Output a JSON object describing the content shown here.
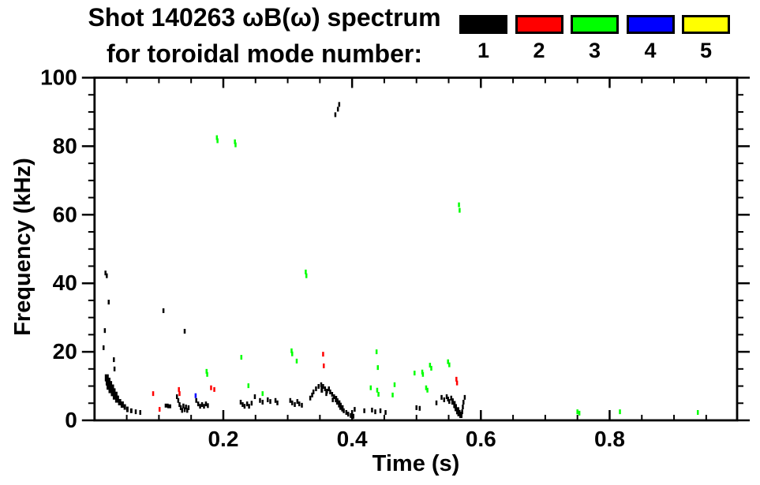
{
  "header": {
    "title_line1": "Shot 140263 ωB(ω) spectrum",
    "title_line2": "for toroidal mode number:"
  },
  "legend": {
    "items": [
      {
        "label": "1",
        "color": "#000000"
      },
      {
        "label": "2",
        "color": "#ff0000"
      },
      {
        "label": "3",
        "color": "#00ff00"
      },
      {
        "label": "4",
        "color": "#0000ff"
      },
      {
        "label": "5",
        "color": "#ffff00"
      }
    ]
  },
  "chart_data": {
    "type": "scatter",
    "title": "Shot 140263 ωB(ω) spectrum for toroidal mode number: 1 2 3 4 5",
    "xlabel": "Time (s)",
    "ylabel": "Frequency (kHz)",
    "xlim": [
      0,
      0.998
    ],
    "ylim": [
      0,
      100
    ],
    "grid": false,
    "legend_position": "top",
    "x_major_ticks": [
      {
        "value": 0.2,
        "label": "0.2"
      },
      {
        "value": 0.4,
        "label": "0.4"
      },
      {
        "value": 0.6,
        "label": "0.6"
      },
      {
        "value": 0.8,
        "label": "0.8"
      }
    ],
    "x_minor_step": 0.05,
    "y_major_ticks": [
      {
        "value": 0,
        "label": "0"
      },
      {
        "value": 20,
        "label": "20"
      },
      {
        "value": 40,
        "label": "40"
      },
      {
        "value": 60,
        "label": "60"
      },
      {
        "value": 80,
        "label": "80"
      },
      {
        "value": 100,
        "label": "100"
      }
    ],
    "y_minor_step": 5,
    "series": [
      {
        "name": "n=1",
        "color": "#000000",
        "points": [
          [
            0.017,
            43
          ],
          [
            0.019,
            42.2
          ],
          [
            0.022,
            34.5
          ],
          [
            0.016,
            26.2
          ],
          [
            0.014,
            21.2
          ],
          [
            0.03,
            17.7
          ],
          [
            0.031,
            15.0
          ],
          [
            0.019,
            12.4,
            5,
            9
          ],
          [
            0.021,
            11.3,
            6,
            10
          ],
          [
            0.023,
            10.2,
            7,
            11
          ],
          [
            0.026,
            9.2,
            7,
            11
          ],
          [
            0.029,
            8.2,
            6,
            10
          ],
          [
            0.032,
            7.2,
            6,
            10
          ],
          [
            0.035,
            6.2,
            5,
            9
          ],
          [
            0.039,
            5.3,
            4,
            8
          ],
          [
            0.043,
            4.6,
            4,
            8
          ],
          [
            0.047,
            3.9,
            3,
            7
          ],
          [
            0.051,
            3.2,
            3,
            7
          ],
          [
            0.057,
            2.8,
            3,
            6
          ],
          [
            0.064,
            2.5
          ],
          [
            0.071,
            2.3
          ],
          [
            0.107,
            32.0
          ],
          [
            0.14,
            26.0
          ],
          [
            0.112,
            4.3,
            5,
            5
          ],
          [
            0.116,
            4.1,
            5,
            5
          ],
          [
            0.128,
            6.9
          ],
          [
            0.13,
            5.8
          ],
          [
            0.132,
            4.6
          ],
          [
            0.134,
            3.7
          ],
          [
            0.136,
            2.9
          ],
          [
            0.138,
            4.2
          ],
          [
            0.14,
            3.1
          ],
          [
            0.142,
            3.9
          ],
          [
            0.144,
            2.9
          ],
          [
            0.146,
            3.7
          ],
          [
            0.158,
            5.8
          ],
          [
            0.161,
            4.8
          ],
          [
            0.164,
            4.1
          ],
          [
            0.167,
            4.6
          ],
          [
            0.17,
            4.1
          ],
          [
            0.173,
            4.8
          ],
          [
            0.176,
            4.3
          ],
          [
            0.227,
            5.3
          ],
          [
            0.23,
            4.6
          ],
          [
            0.233,
            4.1
          ],
          [
            0.237,
            4.8
          ],
          [
            0.24,
            4.1
          ],
          [
            0.244,
            5.0
          ],
          [
            0.249,
            6.9
          ],
          [
            0.257,
            5.8
          ],
          [
            0.261,
            5.3
          ],
          [
            0.269,
            6.0
          ],
          [
            0.273,
            5.5
          ],
          [
            0.281,
            5.8
          ],
          [
            0.284,
            5.1
          ],
          [
            0.304,
            5.8
          ],
          [
            0.307,
            5.1
          ],
          [
            0.311,
            4.6
          ],
          [
            0.315,
            5.5
          ],
          [
            0.318,
            4.8
          ],
          [
            0.322,
            4.4
          ],
          [
            0.335,
            6.5
          ],
          [
            0.338,
            7.4
          ],
          [
            0.34,
            8.3
          ],
          [
            0.344,
            9.2
          ],
          [
            0.348,
            9.9
          ],
          [
            0.352,
            10.4
          ],
          [
            0.353,
            9.0,
            3,
            8
          ],
          [
            0.355,
            9.9
          ],
          [
            0.358,
            9.2
          ],
          [
            0.36,
            7.8
          ],
          [
            0.361,
            8.5
          ],
          [
            0.364,
            9.2
          ],
          [
            0.366,
            8.3
          ],
          [
            0.369,
            7.6
          ],
          [
            0.37,
            6.0
          ],
          [
            0.372,
            6.9
          ],
          [
            0.375,
            6.2,
            3,
            8
          ],
          [
            0.377,
            5.5,
            3,
            8
          ],
          [
            0.38,
            4.8,
            3,
            9
          ],
          [
            0.382,
            4.1,
            3,
            9
          ],
          [
            0.385,
            3.5,
            3,
            8
          ],
          [
            0.387,
            2.8
          ],
          [
            0.391,
            2.3
          ],
          [
            0.394,
            1.8
          ],
          [
            0.398,
            1.4
          ],
          [
            0.402,
            1.2
          ],
          [
            0.38,
            92.2
          ],
          [
            0.378,
            90.8
          ],
          [
            0.374,
            89.2
          ],
          [
            0.404,
            3.2
          ],
          [
            0.419,
            2.8
          ],
          [
            0.431,
            3.0
          ],
          [
            0.436,
            2.5
          ],
          [
            0.444,
            2.8
          ],
          [
            0.452,
            2.3
          ],
          [
            0.5,
            3.7
          ],
          [
            0.505,
            3.5
          ],
          [
            0.531,
            5.1
          ],
          [
            0.539,
            6.7
          ],
          [
            0.543,
            6.0
          ],
          [
            0.547,
            6.9
          ],
          [
            0.549,
            6.2
          ],
          [
            0.551,
            5.5
          ],
          [
            0.554,
            6.5
          ],
          [
            0.556,
            5.5,
            3,
            8
          ],
          [
            0.559,
            4.6,
            3,
            9
          ],
          [
            0.561,
            3.7,
            3,
            9
          ],
          [
            0.564,
            2.8,
            4,
            9
          ],
          [
            0.566,
            2.1,
            4,
            8
          ],
          [
            0.569,
            1.6,
            4,
            8
          ],
          [
            0.571,
            2.5
          ],
          [
            0.572,
            3.9
          ],
          [
            0.573,
            5.3
          ],
          [
            0.575,
            6.7
          ]
        ]
      },
      {
        "name": "n=2",
        "color": "#ff0000",
        "points": [
          [
            0.091,
            7.8
          ],
          [
            0.101,
            3.2
          ],
          [
            0.131,
            9.0
          ],
          [
            0.132,
            7.8
          ],
          [
            0.181,
            9.5
          ],
          [
            0.186,
            9.0
          ],
          [
            0.355,
            19.3
          ],
          [
            0.356,
            15.9
          ],
          [
            0.562,
            12.0
          ],
          [
            0.563,
            10.9
          ]
        ]
      },
      {
        "name": "n=3",
        "color": "#00ff00",
        "points": [
          [
            0.19,
            82.5
          ],
          [
            0.191,
            81.6
          ],
          [
            0.218,
            81.3
          ],
          [
            0.219,
            80.4
          ],
          [
            0.328,
            43.3
          ],
          [
            0.329,
            42.2
          ],
          [
            0.566,
            62.9
          ],
          [
            0.567,
            61.3
          ],
          [
            0.174,
            14.3
          ],
          [
            0.175,
            13.4
          ],
          [
            0.228,
            18.4
          ],
          [
            0.239,
            10.1
          ],
          [
            0.261,
            7.8
          ],
          [
            0.306,
            20.3
          ],
          [
            0.307,
            19.4
          ],
          [
            0.314,
            17.3
          ],
          [
            0.429,
            9.5
          ],
          [
            0.438,
            20.0
          ],
          [
            0.439,
            8.8
          ],
          [
            0.44,
            15.4
          ],
          [
            0.441,
            7.6
          ],
          [
            0.463,
            7.4
          ],
          [
            0.466,
            10.4
          ],
          [
            0.497,
            13.8
          ],
          [
            0.509,
            14.1
          ],
          [
            0.51,
            13.4
          ],
          [
            0.515,
            9.5
          ],
          [
            0.517,
            8.8
          ],
          [
            0.521,
            16.1
          ],
          [
            0.523,
            15.2
          ],
          [
            0.549,
            17.1
          ],
          [
            0.551,
            16.2
          ],
          [
            0.75,
            2.5
          ],
          [
            0.753,
            2.1
          ],
          [
            0.816,
            2.5
          ],
          [
            0.937,
            2.3
          ]
        ]
      },
      {
        "name": "n=4",
        "color": "#0000ff",
        "points": [
          [
            0.157,
            7.2
          ]
        ]
      },
      {
        "name": "n=5",
        "color": "#ffff00",
        "points": []
      }
    ]
  }
}
